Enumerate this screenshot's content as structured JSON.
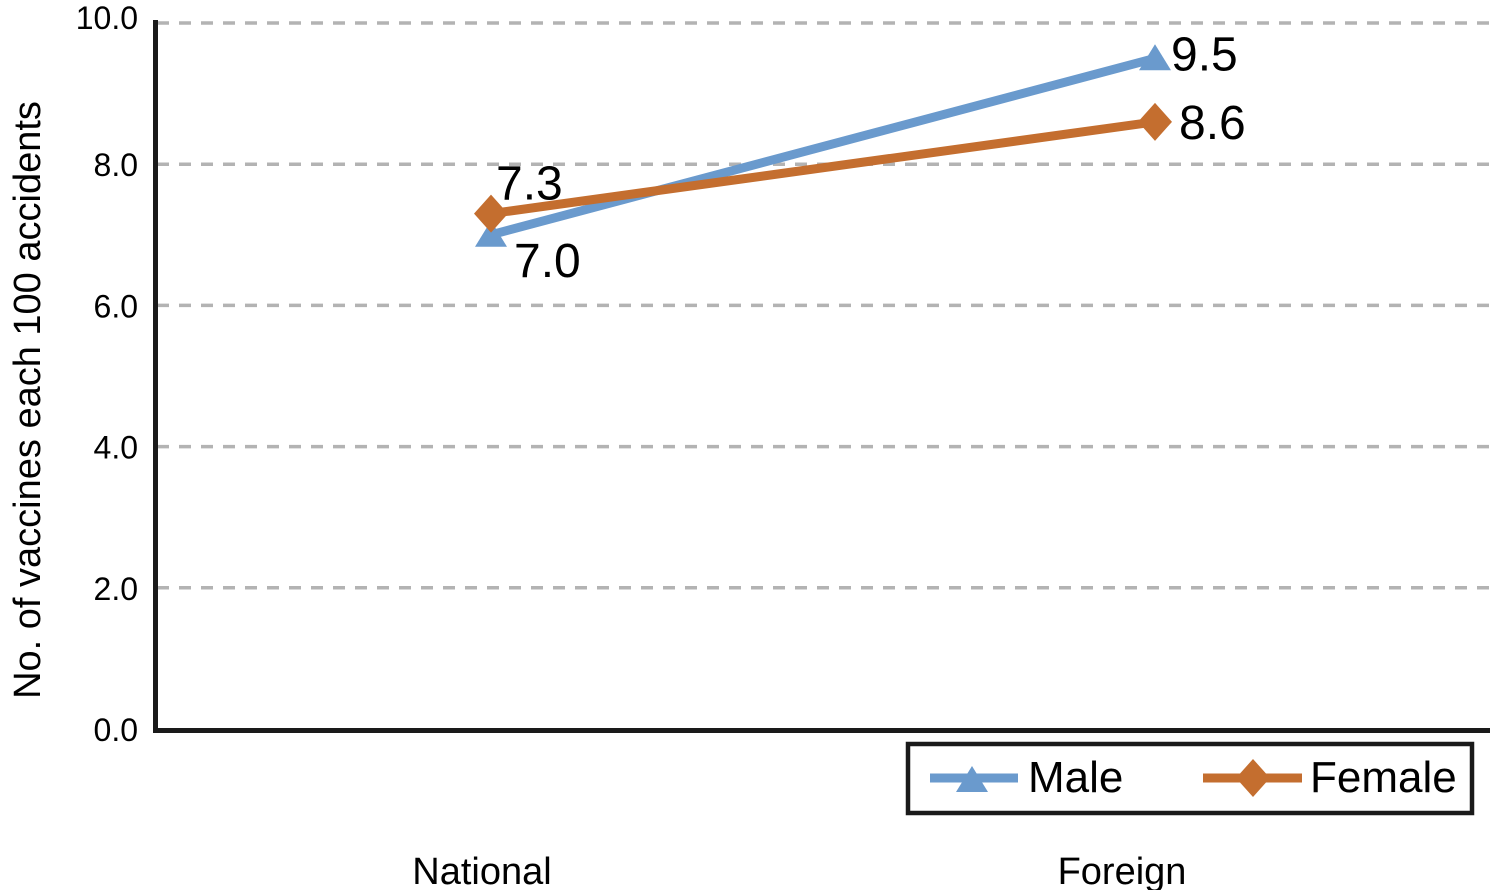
{
  "chart_data": {
    "type": "line",
    "title": "",
    "categories": [
      "National",
      "Foreign"
    ],
    "series": [
      {
        "name": "Male",
        "marker": "triangle",
        "color": "#6A9ACD",
        "values": [
          7.0,
          9.5
        ],
        "labels": [
          "7.0",
          "9.5"
        ]
      },
      {
        "name": "Female",
        "marker": "diamond",
        "color": "#C46E2F",
        "values": [
          7.3,
          8.6
        ],
        "labels": [
          "7.3",
          "8.6"
        ]
      }
    ],
    "xlabel": "",
    "ylabel": "No. of vaccines each 100 accidents",
    "ylim": [
      0,
      10
    ],
    "y_ticks": [
      "0.0",
      "2.0",
      "4.0",
      "6.0",
      "8.0",
      "10.0"
    ],
    "grid": "horizontal-dashed",
    "legend_position": "bottom-right"
  },
  "colors": {
    "axis": "#1a1a1a",
    "gridline": "#b3b3b3",
    "text": "#000000",
    "background": "#ffffff"
  }
}
